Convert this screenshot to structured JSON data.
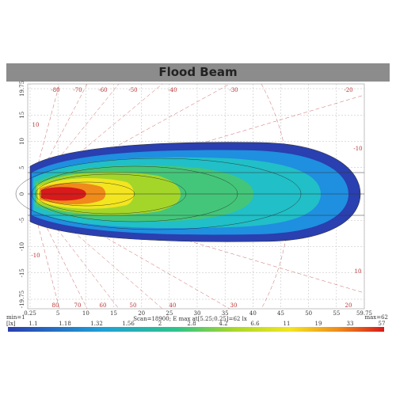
{
  "header": {
    "title": "Flood Beam"
  },
  "plot": {
    "x_labels": [
      "0.25",
      "5",
      "10",
      "15",
      "20",
      "25",
      "30",
      "35",
      "40",
      "45",
      "50",
      "55",
      "59.75"
    ],
    "y_labels": [
      "19.75",
      "15",
      "10",
      "5",
      "0",
      "-5",
      "-10",
      "-15",
      "-19.75"
    ],
    "angle_labels_top": [
      "-80",
      "-70",
      "-60",
      "-50",
      "-40",
      "-30",
      "-20"
    ],
    "angle_labels_bottom": [
      "80",
      "70",
      "60",
      "50",
      "40",
      "30",
      "20"
    ],
    "angle_labels_side": [
      "-10",
      "10",
      "-10",
      "10"
    ],
    "min_label": "min=1",
    "max_label": "max=62",
    "summary": "Scan=18900; E max at[5.25;0.25]=62 lx"
  },
  "legend": {
    "unit": "[lx]",
    "levels": [
      "1.1",
      "1.18",
      "1.32",
      "1.56",
      "2",
      "2.8",
      "4.2",
      "6.6",
      "11",
      "19",
      "33",
      "57"
    ]
  }
}
